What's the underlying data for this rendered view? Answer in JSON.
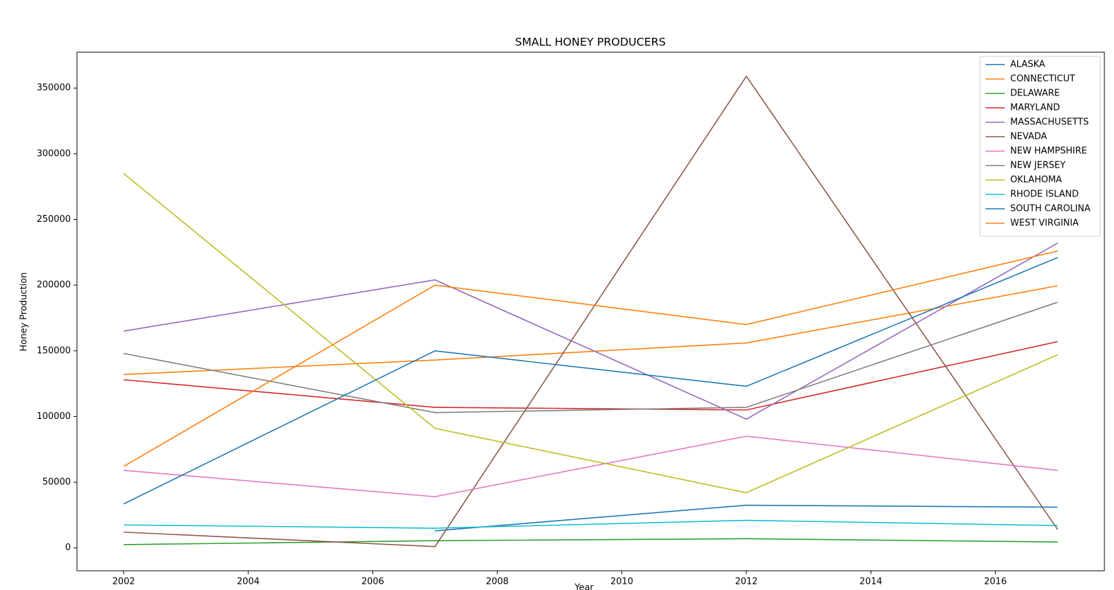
{
  "chart_data": {
    "type": "line",
    "title": "SMALL HONEY PRODUCERS",
    "x_label": "Year",
    "y_label": "Honey Production",
    "x": [
      2002,
      2007,
      2012,
      2017
    ],
    "xlim": [
      2001.25,
      2017.75
    ],
    "xticks": [
      2002,
      2004,
      2006,
      2008,
      2010,
      2012,
      2014,
      2016
    ],
    "ylim": [
      -17400,
      377300
    ],
    "yticks": [
      0,
      50000,
      100000,
      150000,
      200000,
      250000,
      300000,
      350000
    ],
    "legend": "upper right",
    "series": [
      {
        "name": "ALASKA",
        "color": "#1f77b4",
        "values": [
          null,
          13000,
          32500,
          31000
        ]
      },
      {
        "name": "CONNECTICUT",
        "color": "#ff7f0e",
        "values": [
          132000,
          143000,
          156000,
          199500
        ]
      },
      {
        "name": "DELAWARE",
        "color": "#2ca02c",
        "values": [
          2500,
          5500,
          7000,
          4500
        ]
      },
      {
        "name": "MARYLAND",
        "color": "#d62728",
        "values": [
          128000,
          107000,
          105000,
          157000
        ]
      },
      {
        "name": "MASSACHUSETTS",
        "color": "#9467bd",
        "values": [
          165000,
          204000,
          98000,
          232000
        ]
      },
      {
        "name": "NEVADA",
        "color": "#8c564b",
        "values": [
          12000,
          1000,
          359000,
          14000
        ]
      },
      {
        "name": "NEW HAMPSHIRE",
        "color": "#e377c2",
        "values": [
          59000,
          39000,
          85000,
          59000
        ]
      },
      {
        "name": "NEW JERSEY",
        "color": "#7f7f7f",
        "values": [
          148000,
          103000,
          107000,
          187000
        ]
      },
      {
        "name": "OKLAHOMA",
        "color": "#bcbd22",
        "values": [
          285000,
          91000,
          42000,
          147000
        ]
      },
      {
        "name": "RHODE ISLAND",
        "color": "#17becf",
        "values": [
          17500,
          15000,
          21000,
          17000
        ]
      },
      {
        "name": "SOUTH CAROLINA",
        "color": "#1f77b4",
        "values": [
          33500,
          150000,
          123000,
          221000
        ]
      },
      {
        "name": "WEST VIRGINIA",
        "color": "#ff7f0e",
        "values": [
          62000,
          200000,
          170000,
          226000
        ]
      }
    ]
  }
}
